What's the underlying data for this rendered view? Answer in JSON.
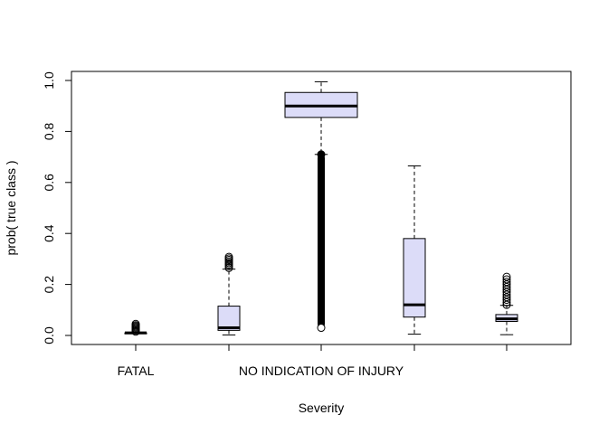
{
  "chart_data": {
    "type": "box",
    "xlabel": "Severity",
    "ylabel": "prob( true class )",
    "ylim": [
      -0.03,
      1.03
    ],
    "yticks": [
      0.0,
      0.2,
      0.4,
      0.6,
      0.8,
      1.0
    ],
    "ytick_labels": [
      "0.0",
      "0.2",
      "0.4",
      "0.6",
      "0.8",
      "1.0"
    ],
    "categories": [
      {
        "label": "FATAL",
        "label_shown": true
      },
      {
        "label": "",
        "label_shown": false
      },
      {
        "label": "NO INDICATION OF INJURY",
        "label_shown": true
      },
      {
        "label": "",
        "label_shown": false
      },
      {
        "label": "",
        "label_shown": false
      }
    ],
    "box_fill": "#dcdcf8",
    "boxes": [
      {
        "whisker_low": 0.01,
        "q1": 0.01,
        "median": 0.01,
        "q3": 0.01,
        "whisker_high": 0.01,
        "outliers": [
          0.015,
          0.02,
          0.024,
          0.028,
          0.032,
          0.036,
          0.04,
          0.045
        ]
      },
      {
        "whisker_low": 0.002,
        "q1": 0.02,
        "median": 0.03,
        "q3": 0.115,
        "whisker_high": 0.26,
        "outliers": [
          0.265,
          0.272,
          0.278,
          0.284,
          0.29,
          0.296,
          0.302,
          0.308
        ]
      },
      {
        "whisker_low": 0.71,
        "q1": 0.855,
        "median": 0.9,
        "q3": 0.953,
        "whisker_high": 0.995,
        "outliers_dense_range": [
          0.03,
          0.71
        ]
      },
      {
        "whisker_low": 0.005,
        "q1": 0.072,
        "median": 0.12,
        "q3": 0.38,
        "whisker_high": 0.665,
        "outliers": []
      },
      {
        "whisker_low": 0.003,
        "q1": 0.055,
        "median": 0.065,
        "q3": 0.082,
        "whisker_high": 0.118,
        "outliers": [
          0.12,
          0.13,
          0.14,
          0.15,
          0.16,
          0.17,
          0.18,
          0.19,
          0.2,
          0.21,
          0.22,
          0.23
        ]
      }
    ]
  }
}
